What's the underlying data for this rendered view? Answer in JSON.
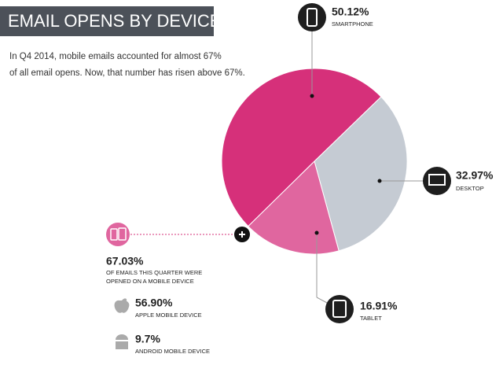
{
  "chart_data": {
    "type": "pie",
    "title": "EMAIL OPENS BY DEVICE",
    "subtitle": [
      "In Q4 2014, mobile emails accounted for almost 67%",
      "of all email opens. Now, that number has risen above 67%."
    ],
    "categories": [
      "SMARTPHONE",
      "DESKTOP",
      "TABLET"
    ],
    "values": [
      50.12,
      32.97,
      16.91
    ],
    "value_labels": [
      "50.12%",
      "32.97%",
      "16.91%"
    ],
    "colors": [
      "#d6307a",
      "#c5cbd3",
      "#e0669f"
    ]
  },
  "stats": [
    {
      "figure": "67.03%",
      "label": [
        "OF EMAILS THIS QUARTER WERE",
        "OPENED ON A MOBILE DEVICE"
      ]
    },
    {
      "figure": "56.90%",
      "label": [
        "APPLE MOBILE DEVICE"
      ]
    },
    {
      "figure": "9.7%",
      "label": [
        "ANDROID MOBILE DEVICE"
      ]
    }
  ]
}
